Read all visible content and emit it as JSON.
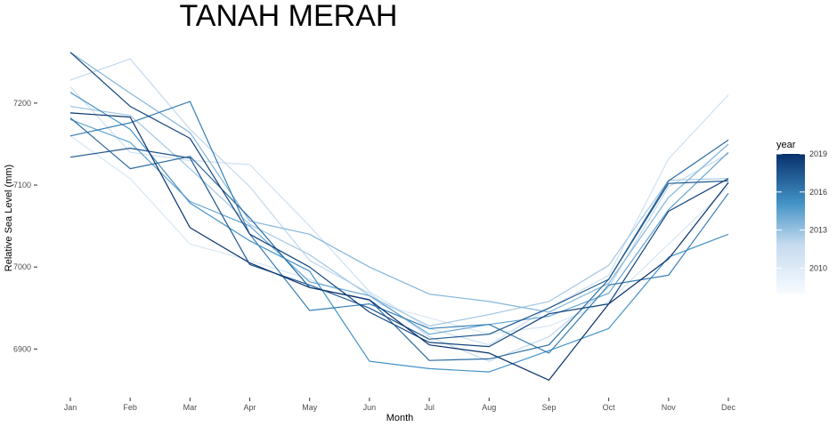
{
  "chart_data": {
    "type": "line",
    "title": "TANAH MERAH",
    "xlabel": "Month",
    "ylabel": "Relative Sea Level (mm)",
    "categories": [
      "Jan",
      "Feb",
      "Mar",
      "Apr",
      "May",
      "Jun",
      "Jul",
      "Aug",
      "Sep",
      "Oct",
      "Nov",
      "Dec"
    ],
    "ylim": [
      6845,
      7265
    ],
    "yticks": [
      6900,
      7000,
      7100,
      7200
    ],
    "grid": false,
    "legend": {
      "title": "year",
      "position": "right",
      "type": "colorbar",
      "range": [
        2008,
        2019
      ],
      "ticks": [
        2010,
        2013,
        2016,
        2019
      ],
      "color_low": "#f7fbff",
      "color_high": "#08306b"
    },
    "series": [
      {
        "year": 2008,
        "values": [
          7160,
          7108,
          7028,
          7008,
          6985,
          6958,
          6938,
          6918,
          6928,
          6958,
          7028,
          7098
        ]
      },
      {
        "year": 2009,
        "values": [
          7220,
          7140,
          7130,
          7125,
          7050,
          6970,
          6925,
          6905,
          6950,
          6990,
          7132,
          7210
        ]
      },
      {
        "year": 2010,
        "values": [
          7228,
          7254,
          7168,
          7098,
          7008,
          6968,
          6915,
          6885,
          6915,
          6975,
          7098,
          7138
        ]
      },
      {
        "year": 2011,
        "values": [
          7196,
          7185,
          7120,
          7052,
          7015,
          6965,
          6928,
          6942,
          6958,
          7002,
          7106,
          7108
        ]
      },
      {
        "year": 2012,
        "values": [
          7262,
          7212,
          7164,
          7056,
          7040,
          7000,
          6967,
          6958,
          6945,
          6980,
          7085,
          7150
        ]
      },
      {
        "year": 2013,
        "values": [
          7180,
          7152,
          7080,
          7050,
          6982,
          6965,
          6918,
          6930,
          6940,
          6968,
          7070,
          7140
        ]
      },
      {
        "year": 2014,
        "values": [
          7213,
          7168,
          7078,
          7032,
          6995,
          6885,
          6876,
          6872,
          6898,
          6925,
          7012,
          7040
        ]
      },
      {
        "year": 2015,
        "values": [
          7160,
          7176,
          7202,
          7040,
          6947,
          6955,
          6925,
          6930,
          6895,
          6978,
          6990,
          7090
        ]
      },
      {
        "year": 2016,
        "values": [
          7182,
          7120,
          7135,
          7060,
          6975,
          6960,
          6886,
          6888,
          6905,
          6985,
          7105,
          7155
        ]
      },
      {
        "year": 2017,
        "values": [
          7134,
          7145,
          7133,
          7003,
          6978,
          6950,
          6912,
          6918,
          6950,
          6985,
          7102,
          7105
        ]
      },
      {
        "year": 2018,
        "values": [
          7262,
          7196,
          7157,
          7040,
          7000,
          6945,
          6908,
          6903,
          6943,
          6955,
          7068,
          7108
        ]
      },
      {
        "year": 2019,
        "values": [
          7188,
          7183,
          7048,
          7005,
          6975,
          6960,
          6905,
          6895,
          6862,
          6955,
          7010,
          7103
        ]
      }
    ]
  }
}
